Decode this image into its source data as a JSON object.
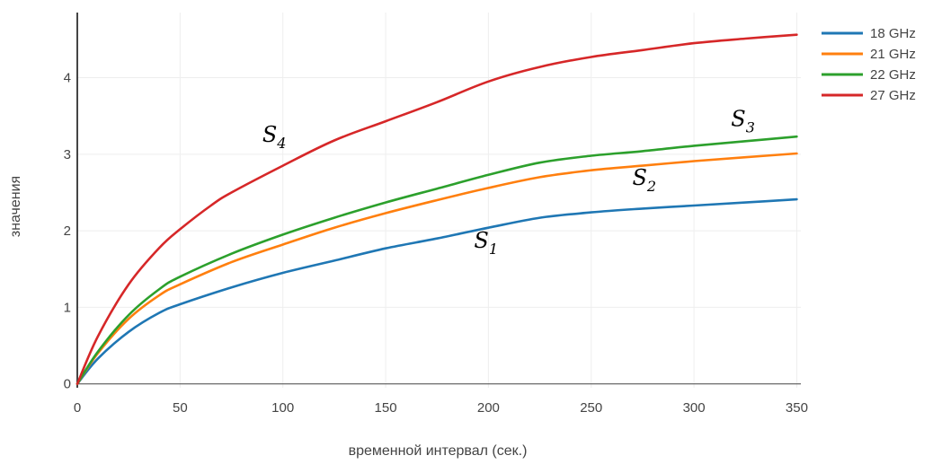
{
  "chart_data": {
    "type": "line",
    "title": "",
    "xlabel": "временной интервал (сек.)",
    "ylabel": "значения",
    "xlim": [
      0,
      352
    ],
    "ylim": [
      -0.05,
      4.85
    ],
    "xticks": [
      0,
      50,
      100,
      150,
      200,
      250,
      300,
      350
    ],
    "yticks": [
      0,
      1,
      2,
      3,
      4
    ],
    "grid": true,
    "legend_position": "top-right",
    "series": [
      {
        "name": "18 GHz",
        "color": "#1f77b4",
        "label": {
          "main": "S",
          "sub": "1",
          "x": 193,
          "y": 1.78
        },
        "x": [
          0,
          10,
          25,
          40,
          50,
          75,
          100,
          125,
          150,
          175,
          200,
          225,
          250,
          275,
          300,
          325,
          350
        ],
        "y": [
          0,
          0.33,
          0.68,
          0.93,
          1.04,
          1.26,
          1.45,
          1.61,
          1.77,
          1.9,
          2.04,
          2.17,
          2.24,
          2.29,
          2.33,
          2.37,
          2.41
        ]
      },
      {
        "name": "21 GHz",
        "color": "#ff7f0e",
        "label": {
          "main": "S",
          "sub": "2",
          "x": 270,
          "y": 2.6
        },
        "x": [
          0,
          10,
          25,
          40,
          50,
          75,
          100,
          125,
          150,
          175,
          200,
          225,
          250,
          275,
          300,
          325,
          350
        ],
        "y": [
          0,
          0.4,
          0.85,
          1.16,
          1.3,
          1.59,
          1.82,
          2.04,
          2.23,
          2.4,
          2.56,
          2.7,
          2.79,
          2.85,
          2.91,
          2.96,
          3.01
        ]
      },
      {
        "name": "22 GHz",
        "color": "#2ca02c",
        "label": {
          "main": "S",
          "sub": "3",
          "x": 318,
          "y": 3.37
        },
        "x": [
          0,
          10,
          25,
          40,
          50,
          75,
          100,
          125,
          150,
          175,
          200,
          225,
          250,
          275,
          300,
          325,
          350
        ],
        "y": [
          0,
          0.42,
          0.9,
          1.24,
          1.4,
          1.7,
          1.95,
          2.17,
          2.37,
          2.55,
          2.73,
          2.89,
          2.98,
          3.04,
          3.11,
          3.17,
          3.23
        ]
      },
      {
        "name": "27 GHz",
        "color": "#d62728",
        "label": {
          "main": "S",
          "sub": "4",
          "x": 90,
          "y": 3.16
        },
        "x": [
          0,
          10,
          25,
          40,
          50,
          65,
          75,
          100,
          125,
          150,
          175,
          200,
          225,
          250,
          275,
          300,
          325,
          350
        ],
        "y": [
          0,
          0.62,
          1.3,
          1.78,
          2.02,
          2.33,
          2.5,
          2.85,
          3.18,
          3.43,
          3.68,
          3.95,
          4.14,
          4.27,
          4.36,
          4.45,
          4.51,
          4.56
        ]
      }
    ]
  }
}
